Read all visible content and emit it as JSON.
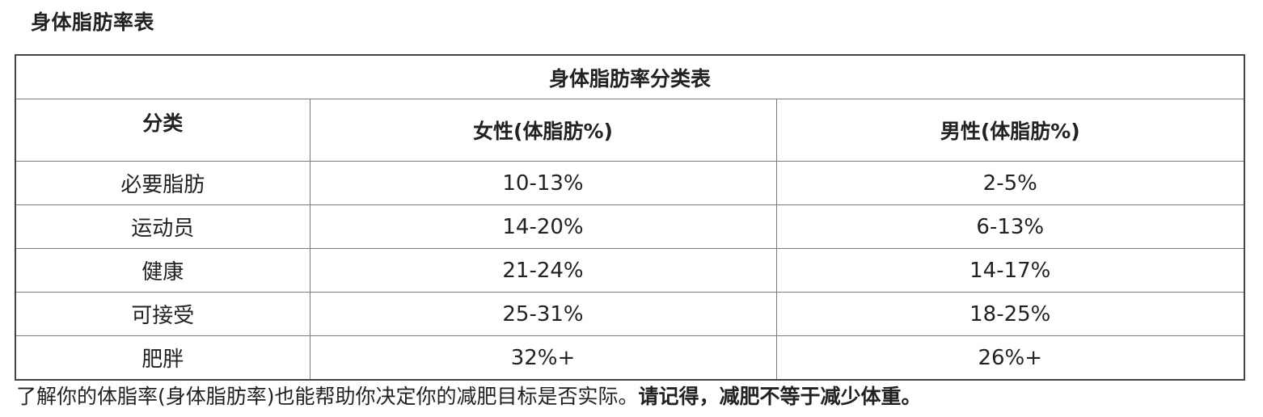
{
  "page": {
    "title": "身体脂肪率表"
  },
  "table": {
    "caption": "身体脂肪率分类表",
    "headers": [
      "分类",
      "女性(体脂肪%)",
      "男性(体脂肪%)"
    ],
    "rows": [
      [
        "必要脂肪",
        "10-13%",
        "2-5%"
      ],
      [
        "运动员",
        "14-20%",
        "6-13%"
      ],
      [
        "健康",
        "21-24%",
        "14-17%"
      ],
      [
        "可接受",
        "25-31%",
        "18-25%"
      ],
      [
        "肥胖",
        "32%+",
        "26%+"
      ]
    ]
  },
  "footnote": {
    "text": "了解你的体脂率(身体脂肪率)也能帮助你决定你的减肥目标是否实际。",
    "emphasis": "请记得，减肥不等于减少体重。"
  }
}
